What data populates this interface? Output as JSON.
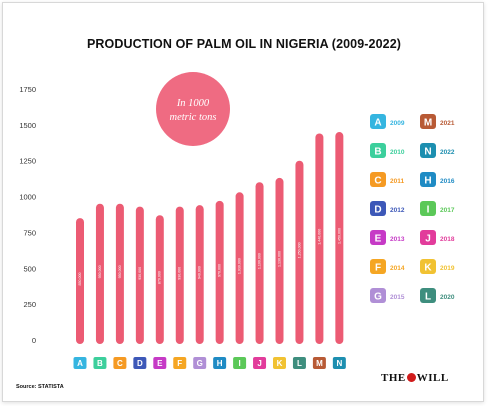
{
  "chart_data": {
    "type": "bar",
    "title": "PRODUCTION OF PALM OIL IN NIGERIA (2009-2022)",
    "unit_badge": "In 1000 metric tons",
    "ylim": [
      0,
      1750
    ],
    "yticks": [
      0,
      250,
      500,
      750,
      1000,
      1250,
      1500,
      1750
    ],
    "categories": [
      "A",
      "B",
      "C",
      "D",
      "E",
      "F",
      "G",
      "H",
      "I",
      "J",
      "K",
      "L",
      "M",
      "N"
    ],
    "values": [
      850,
      950,
      950,
      930,
      870,
      930,
      940,
      970,
      1030,
      1100,
      1130,
      1250,
      1440,
      1450
    ],
    "bar_value_labels": [
      "850,000",
      "950,000",
      "950,000",
      "930,000",
      "870,000",
      "930,000",
      "940,000",
      "970,000",
      "1,030,000",
      "1,100,000",
      "1,130,000",
      "1,250,000",
      "1,440,000",
      "1,450,000"
    ],
    "category_colors": [
      "#35b5e0",
      "#3ccf9c",
      "#f59a23",
      "#3d58b8",
      "#c63ac6",
      "#f5a623",
      "#b08fd6",
      "#1f8bc4",
      "#5bc858",
      "#e23c9b",
      "#f1c232",
      "#3e8e7e",
      "#b85a35",
      "#1d8fb0"
    ],
    "bar_color": "#ec5b73",
    "legend": [
      {
        "letter": "A",
        "year": "2009"
      },
      {
        "letter": "M",
        "year": "2021"
      },
      {
        "letter": "B",
        "year": "2010"
      },
      {
        "letter": "N",
        "year": "2022"
      },
      {
        "letter": "C",
        "year": "2011"
      },
      {
        "letter": "H",
        "year": "2016"
      },
      {
        "letter": "D",
        "year": "2012"
      },
      {
        "letter": "I",
        "year": "2017"
      },
      {
        "letter": "E",
        "year": "2013"
      },
      {
        "letter": "J",
        "year": "2018"
      },
      {
        "letter": "F",
        "year": "2014"
      },
      {
        "letter": "K",
        "year": "2019"
      },
      {
        "letter": "G",
        "year": "2015"
      },
      {
        "letter": "L",
        "year": "2020"
      }
    ],
    "grid": false,
    "legend_position": "right"
  },
  "source": "Source: STATISTA",
  "logo": {
    "left": "THE",
    "right": "WILL"
  }
}
